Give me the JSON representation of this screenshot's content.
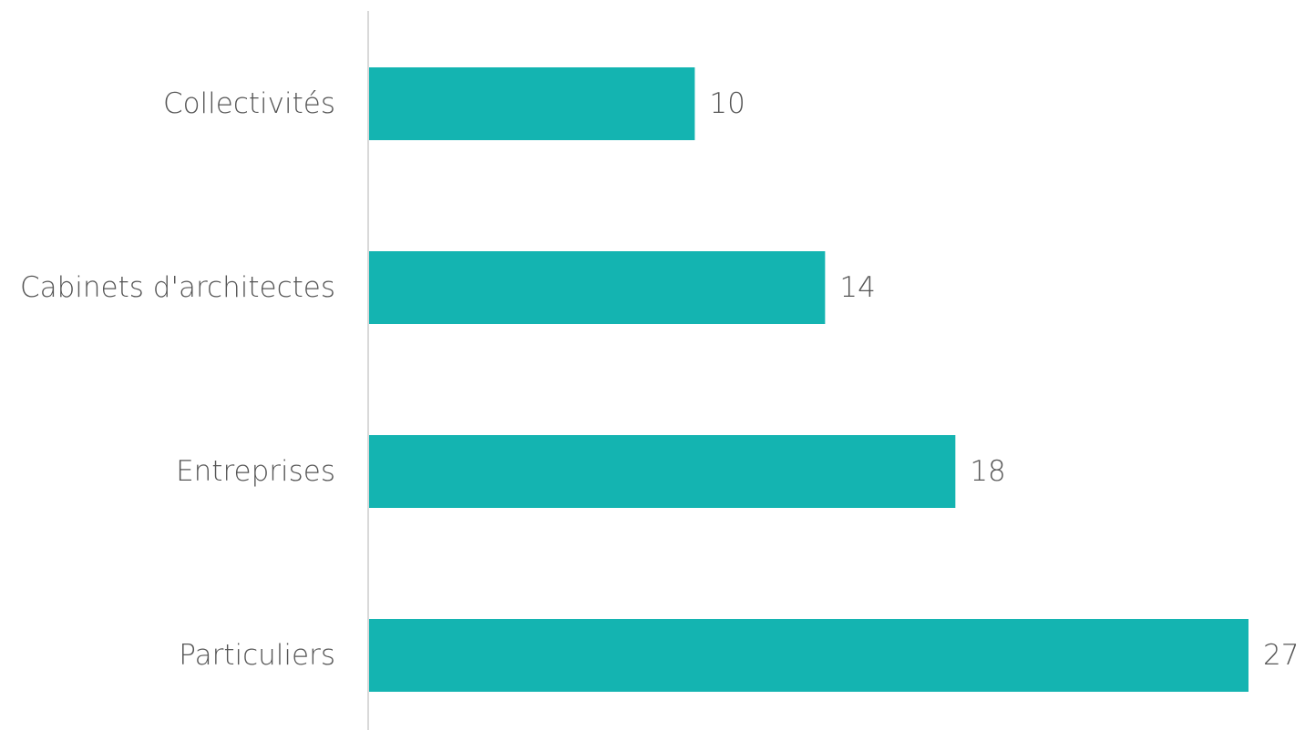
{
  "chart_data": {
    "type": "bar",
    "orientation": "horizontal",
    "categories": [
      "Collectivités",
      "Cabinets d'architectes",
      "Entreprises",
      "Particuliers"
    ],
    "values": [
      10,
      14,
      18,
      27
    ],
    "title": "",
    "xlabel": "",
    "ylabel": "",
    "xlim": [
      0,
      27
    ],
    "grid": false,
    "legend": "none",
    "bar_color": "#14b4b1",
    "axis_color": "#d9d9d9",
    "text_color": "#555555"
  }
}
